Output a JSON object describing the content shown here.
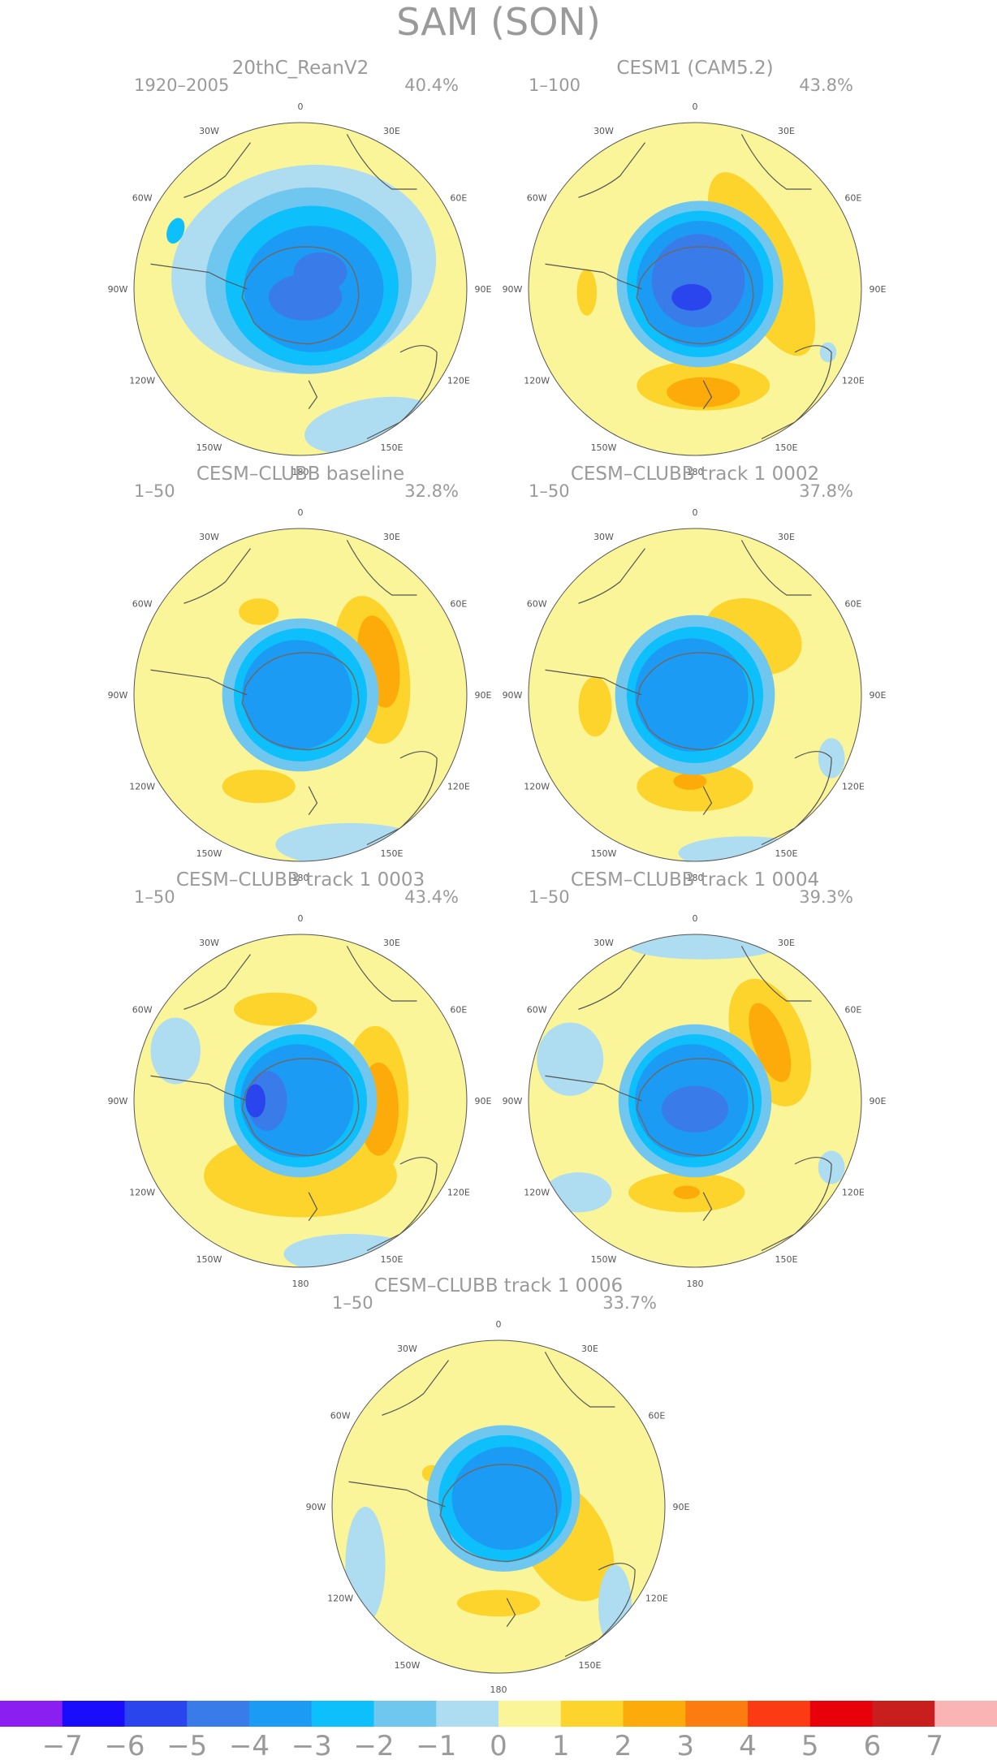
{
  "title": "SAM (SON)",
  "lon_labels": [
    "0",
    "30E",
    "60E",
    "90E",
    "120E",
    "150E",
    "180",
    "150W",
    "120W",
    "90W",
    "60W",
    "30W"
  ],
  "panels": [
    {
      "title": "20thC_ReanV2",
      "period": "1920–2005",
      "pct": "40.4%"
    },
    {
      "title": "CESM1 (CAM5.2)",
      "period": "1–100",
      "pct": "43.8%"
    },
    {
      "title": "CESM–CLUBB baseline",
      "period": "1–50",
      "pct": "32.8%"
    },
    {
      "title": "CESM–CLUBB track 1 0002",
      "period": "1–50",
      "pct": "37.8%"
    },
    {
      "title": "CESM–CLUBB track 1 0003",
      "period": "1–50",
      "pct": "43.4%"
    },
    {
      "title": "CESM–CLUBB track 1 0004",
      "period": "1–50",
      "pct": "39.3%"
    },
    {
      "title": "CESM–CLUBB track 1 0006",
      "period": "1–50",
      "pct": "33.7%"
    }
  ],
  "colorbar": {
    "colors": [
      "#8B1FF2",
      "#1A0DFC",
      "#2A45EE",
      "#3A7BEA",
      "#1C9BF5",
      "#0DBFFA",
      "#6FC7F0",
      "#AEDCF0",
      "#FBF59A",
      "#FDD42B",
      "#FDAB0A",
      "#FC7C10",
      "#FC3B14",
      "#E8000B",
      "#C81E1E",
      "#FAB4B4"
    ],
    "labels": [
      "−7",
      "−6",
      "−5",
      "−4",
      "−3",
      "−2",
      "−1",
      "0",
      "1",
      "2",
      "3",
      "4",
      "5",
      "6",
      "7"
    ]
  }
}
